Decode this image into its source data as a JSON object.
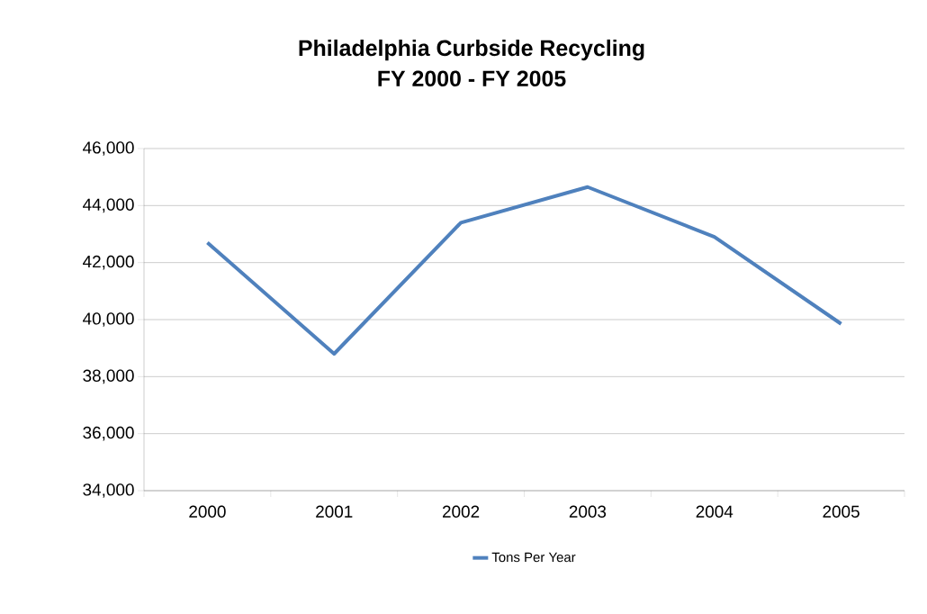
{
  "chart_data": {
    "type": "line",
    "title": "Philadelphia Curbside Recycling",
    "subtitle": "FY 2000 - FY 2005",
    "categories": [
      "2000",
      "2001",
      "2002",
      "2003",
      "2004",
      "2005"
    ],
    "series": [
      {
        "name": "Tons Per Year",
        "color": "#4f81bd",
        "values": [
          42700,
          38800,
          43400,
          44650,
          42900,
          39850
        ]
      }
    ],
    "ylim": [
      34000,
      46000
    ],
    "yticks": [
      {
        "value": 34000,
        "label": "34,000"
      },
      {
        "value": 36000,
        "label": "36,000"
      },
      {
        "value": 38000,
        "label": "38,000"
      },
      {
        "value": 40000,
        "label": "40,000"
      },
      {
        "value": 42000,
        "label": "42,000"
      },
      {
        "value": 44000,
        "label": "44,000"
      },
      {
        "value": 46000,
        "label": "46,000"
      }
    ],
    "grid": "y",
    "legend": "bottom"
  }
}
